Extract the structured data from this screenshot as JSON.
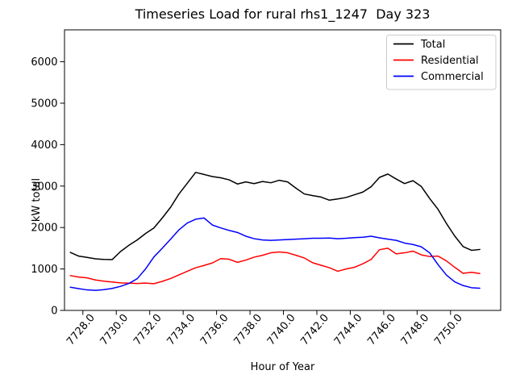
{
  "figure": {
    "title": "Timeseries Load for rural rhs1_1247  Day 323"
  },
  "chart_data": {
    "type": "line",
    "title": "Timeseries Load for rural rhs1_1247  Day 323",
    "xlabel": "Hour of Year",
    "ylabel": "kW total",
    "xlim": [
      7726.9,
      7753.0
    ],
    "ylim": [
      0,
      6770
    ],
    "grid": false,
    "x_tick_values": [
      7728,
      7730,
      7732,
      7734,
      7736,
      7738,
      7740,
      7742,
      7744,
      7746,
      7748,
      7750
    ],
    "x_tick_labels": [
      "7728.0",
      "7730.0",
      "7732.0",
      "7734.0",
      "7736.0",
      "7738.0",
      "7740.0",
      "7742.0",
      "7744.0",
      "7746.0",
      "7748.0",
      "7750.0"
    ],
    "y_tick_values": [
      0,
      1000,
      2000,
      3000,
      4000,
      5000,
      6000
    ],
    "y_tick_labels": [
      "0",
      "1000",
      "2000",
      "3000",
      "4000",
      "5000",
      "6000"
    ],
    "legend": {
      "position": "upper right",
      "entries": [
        {
          "label": "Total",
          "color": "#000000"
        },
        {
          "label": "Residential",
          "color": "#ff0000"
        },
        {
          "label": "Commercial",
          "color": "#0000ff"
        }
      ]
    },
    "x": [
      7727.25,
      7727.75,
      7728.25,
      7728.75,
      7729.25,
      7729.75,
      7730.25,
      7730.75,
      7731.25,
      7731.75,
      7732.25,
      7732.75,
      7733.25,
      7733.75,
      7734.25,
      7734.75,
      7735.25,
      7735.75,
      7736.25,
      7736.75,
      7737.25,
      7737.75,
      7738.25,
      7738.75,
      7739.25,
      7739.75,
      7740.25,
      7740.75,
      7741.25,
      7741.75,
      7742.25,
      7742.75,
      7743.25,
      7743.75,
      7744.25,
      7744.75,
      7745.25,
      7745.75,
      7746.25,
      7746.75,
      7747.25,
      7747.75,
      7748.25,
      7748.75,
      7749.25,
      7749.75,
      7750.25,
      7750.75,
      7751.25,
      7751.75
    ],
    "series": [
      {
        "name": "Total",
        "color": "#000000",
        "values": [
          1400,
          1310,
          1280,
          1245,
          1230,
          1225,
          1420,
          1570,
          1700,
          1855,
          1990,
          2230,
          2490,
          2810,
          3070,
          3330,
          3280,
          3230,
          3200,
          3150,
          3050,
          3100,
          3060,
          3110,
          3080,
          3140,
          3100,
          2950,
          2810,
          2770,
          2735,
          2660,
          2690,
          2725,
          2790,
          2855,
          2985,
          3210,
          3290,
          3170,
          3060,
          3130,
          2990,
          2700,
          2440,
          2100,
          1795,
          1540,
          1450,
          1470
        ]
      },
      {
        "name": "Residential",
        "color": "#ff0000",
        "values": [
          840,
          805,
          785,
          735,
          705,
          685,
          665,
          660,
          650,
          658,
          645,
          700,
          770,
          858,
          945,
          1030,
          1085,
          1145,
          1250,
          1235,
          1160,
          1215,
          1285,
          1330,
          1390,
          1410,
          1390,
          1330,
          1265,
          1150,
          1090,
          1030,
          945,
          1000,
          1040,
          1125,
          1230,
          1465,
          1500,
          1365,
          1390,
          1430,
          1340,
          1300,
          1310,
          1195,
          1040,
          895,
          920,
          890
        ]
      },
      {
        "name": "Commercial",
        "color": "#0000ff",
        "values": [
          560,
          525,
          495,
          485,
          500,
          530,
          580,
          650,
          765,
          1000,
          1290,
          1500,
          1720,
          1945,
          2110,
          2200,
          2230,
          2060,
          1990,
          1930,
          1880,
          1790,
          1730,
          1700,
          1690,
          1700,
          1710,
          1720,
          1730,
          1740,
          1740,
          1745,
          1730,
          1740,
          1755,
          1765,
          1790,
          1750,
          1720,
          1690,
          1625,
          1590,
          1535,
          1390,
          1105,
          855,
          690,
          600,
          548,
          535
        ]
      }
    ]
  }
}
